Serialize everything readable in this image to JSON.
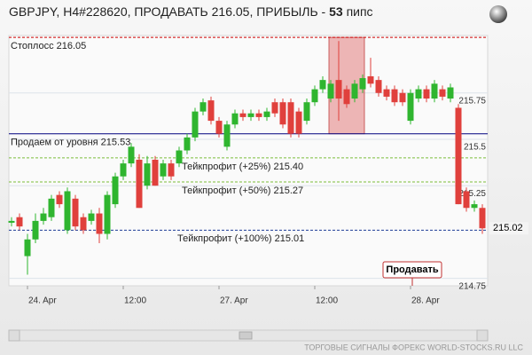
{
  "chart_data": {
    "type": "candlestick",
    "title_prefix": "GBPJPY, H4#228620, ПРОДАВАТЬ 216.05, ПРИБЫЛЬ - ",
    "profit": 53,
    "profit_unit": "пипс",
    "categories": [
      null,
      null,
      "24. Apr",
      null,
      null,
      null,
      null,
      null,
      null,
      null,
      null,
      null,
      null,
      null,
      "12:00",
      null,
      null,
      null,
      null,
      null,
      null,
      null,
      null,
      null,
      null,
      null,
      "27. Apr",
      null,
      null,
      null,
      null,
      null,
      null,
      null,
      null,
      null,
      null,
      null,
      "12:00",
      null,
      null,
      null,
      null,
      null,
      null,
      null,
      null,
      null,
      null,
      null,
      "28. Apr",
      null,
      null,
      null,
      null,
      null,
      null,
      null,
      null,
      null
    ],
    "open": [
      215.05,
      215.08,
      214.87,
      214.96,
      215.06,
      215.08,
      215.2,
      215.01,
      215.18,
      215.08,
      215.06,
      215.1,
      214.99,
      215.15,
      215.3,
      215.37,
      215.39,
      215.25,
      215.39,
      215.3,
      215.37,
      215.37,
      215.44,
      215.51,
      215.65,
      215.71,
      215.6,
      215.46,
      215.58,
      215.64,
      215.62,
      215.64,
      215.62,
      215.7,
      215.7,
      215.7,
      215.65,
      215.6,
      215.7,
      215.77,
      215.72,
      215.82,
      215.77,
      215.72,
      215.77,
      215.84,
      215.82,
      215.77,
      215.77,
      215.75,
      215.6,
      215.72,
      215.77,
      215.72,
      215.77,
      215.72,
      215.67,
      215.22,
      215.13,
      215.13
    ],
    "high": [
      215.08,
      215.1,
      214.99,
      215.1,
      215.13,
      215.2,
      215.22,
      215.24,
      215.2,
      215.1,
      215.12,
      215.13,
      215.22,
      215.32,
      215.39,
      215.48,
      215.42,
      215.41,
      215.41,
      215.39,
      215.39,
      215.46,
      215.53,
      215.67,
      215.72,
      215.73,
      215.62,
      215.6,
      215.66,
      215.66,
      215.66,
      215.66,
      215.67,
      215.72,
      215.72,
      215.72,
      215.67,
      215.72,
      215.79,
      215.84,
      215.82,
      216.03,
      215.79,
      215.82,
      215.85,
      215.94,
      215.84,
      215.79,
      215.79,
      215.77,
      215.77,
      215.79,
      215.79,
      215.82,
      215.79,
      215.8,
      215.69,
      215.24,
      215.17,
      215.15
    ],
    "low": [
      215.03,
      215.01,
      214.77,
      214.94,
      215.04,
      215.06,
      215.13,
      214.99,
      215.01,
      214.99,
      215.04,
      214.94,
      214.96,
      215.13,
      215.28,
      215.35,
      215.13,
      215.23,
      215.25,
      215.28,
      215.28,
      215.35,
      215.42,
      215.49,
      215.63,
      215.58,
      215.51,
      215.44,
      215.56,
      215.6,
      215.6,
      215.6,
      215.6,
      215.62,
      215.56,
      215.51,
      215.51,
      215.58,
      215.68,
      215.75,
      215.7,
      215.6,
      215.67,
      215.7,
      215.75,
      215.78,
      215.73,
      215.71,
      215.68,
      215.68,
      215.58,
      215.7,
      215.7,
      215.7,
      215.71,
      215.7,
      215.15,
      215.11,
      215.11,
      214.99
    ],
    "close": [
      215.06,
      215.03,
      214.96,
      215.06,
      215.1,
      215.18,
      215.15,
      215.22,
      215.03,
      215.01,
      215.1,
      214.99,
      215.2,
      215.3,
      215.37,
      215.46,
      215.13,
      215.37,
      215.25,
      215.37,
      215.3,
      215.44,
      215.51,
      215.65,
      215.7,
      215.6,
      215.53,
      215.58,
      215.64,
      215.62,
      215.64,
      215.62,
      215.65,
      215.64,
      215.58,
      215.53,
      215.53,
      215.7,
      215.77,
      215.82,
      215.8,
      215.72,
      215.69,
      215.8,
      215.83,
      215.8,
      215.75,
      215.73,
      215.7,
      215.7,
      215.75,
      215.77,
      215.72,
      215.8,
      215.73,
      215.78,
      215.15,
      215.13,
      215.15,
      215.02
    ],
    "up_color": "#2fb52f",
    "down_color": "#e0403c",
    "ylim": [
      214.71,
      216.06
    ],
    "yticks": [
      215.75,
      {
        "value": 215.5,
        "label": "215.5"
      },
      215.25,
      214.75
    ],
    "grid": true,
    "levels": [
      {
        "label": "Стоплосс 216.05",
        "value": 216.05,
        "color": "#cc0000",
        "dashed": true
      },
      {
        "label": "Продаем от уровня 215.53",
        "value": 215.53,
        "color": "#000080",
        "dashed": false
      },
      {
        "label": "Тейкпрофит (+25%) 215.40",
        "value": 215.4,
        "color": "#7cbd3a",
        "dashed": true
      },
      {
        "label": "Тейкпрофит (+50%) 215.27",
        "value": 215.27,
        "color": "#7cbd3a",
        "dashed": true
      },
      {
        "label": "Тейкпрофит (+100%) 215.01",
        "value": 215.01,
        "color": "#1e3c96",
        "dashed": true
      }
    ],
    "last_price": 215.02,
    "button": "Продавать",
    "footer": "ТОРГОВЫЕ СИГНАЛЫ ФОРЕКС WORLD-STOCKS.RU LLC"
  }
}
